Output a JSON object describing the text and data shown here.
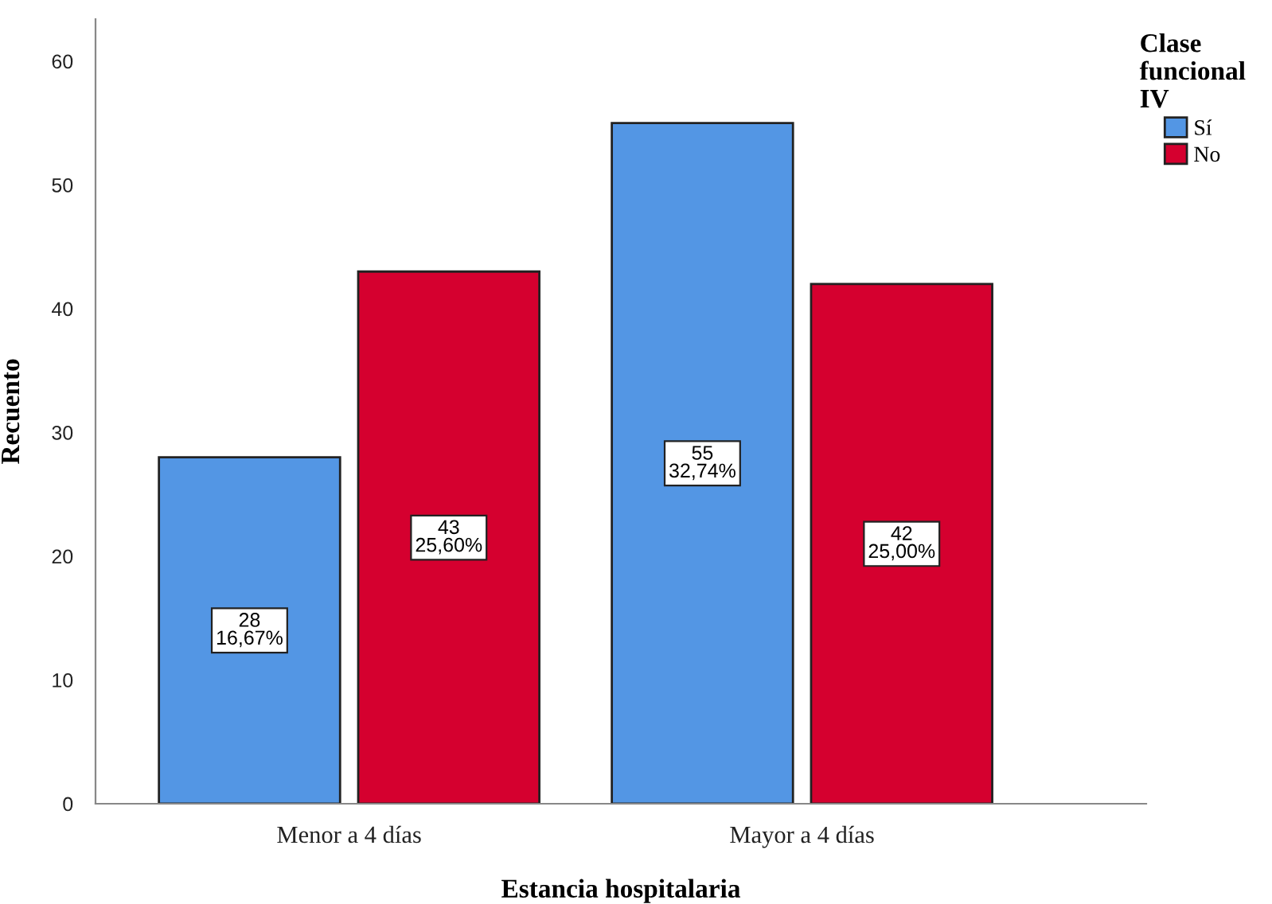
{
  "chart_data": {
    "type": "bar",
    "xlabel": "Estancia hospitalaria",
    "ylabel": "Recuento",
    "legend_title": "Clase\nfuncional\nIV",
    "categories": [
      "Menor a 4 días",
      "Mayor a 4 días"
    ],
    "series": [
      {
        "name": "Sí",
        "color": "#5396e4",
        "values": [
          28,
          55
        ],
        "value_labels": [
          "28\n16,67%",
          "55\n32,74%"
        ]
      },
      {
        "name": "No",
        "color": "#d5002f",
        "values": [
          43,
          42
        ],
        "value_labels": [
          "43\n25,60%",
          "42\n25,00%"
        ]
      }
    ],
    "ylim": [
      0,
      63.4
    ],
    "yticks": [
      0,
      10,
      20,
      30,
      40,
      50,
      60
    ],
    "grid": false,
    "legend": "top right"
  }
}
